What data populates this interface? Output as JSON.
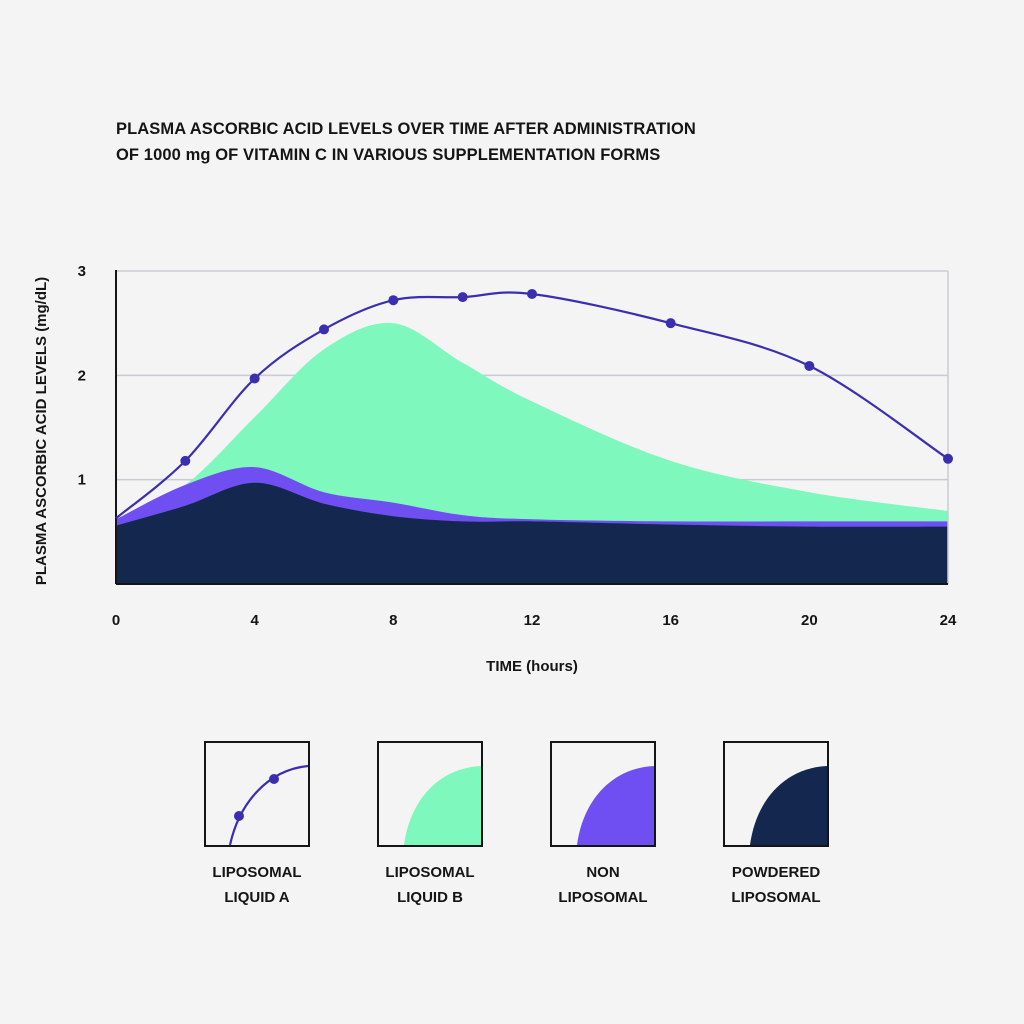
{
  "title_lines": [
    "PLASMA ASCORBIC ACID LEVELS OVER TIME AFTER ADMINISTRATION",
    "OF 1000 mg OF VITAMIN C IN VARIOUS SUPPLEMENTATION FORMS"
  ],
  "chart_data": {
    "type": "area",
    "title": "PLASMA ASCORBIC ACID LEVELS OVER TIME AFTER ADMINISTRATION OF 1000 mg OF VITAMIN C IN VARIOUS SUPPLEMENTATION FORMS",
    "xlabel": "TIME (hours)",
    "ylabel": "PLASMA ASCORBIC ACID LEVELS (mg/dL)",
    "xlim": [
      0,
      24
    ],
    "ylim": [
      0,
      3
    ],
    "x_ticks": [
      0,
      4,
      8,
      12,
      16,
      20,
      24
    ],
    "y_ticks": [
      1,
      2,
      3
    ],
    "grid": true,
    "legend_position": "bottom",
    "series": [
      {
        "name": "LIPOSOMAL LIQUID A",
        "style": "line-with-markers",
        "color": "#3b2fb0",
        "x": [
          0,
          2,
          4,
          6,
          8,
          10,
          12,
          16,
          20,
          24
        ],
        "y": [
          0.63,
          1.18,
          1.97,
          2.44,
          2.72,
          2.75,
          2.78,
          2.5,
          2.09,
          1.2
        ]
      },
      {
        "name": "LIPOSOMAL LIQUID B",
        "style": "area",
        "color": "#7ff8bd",
        "x": [
          0,
          2,
          4,
          6,
          8,
          10,
          12,
          16,
          20,
          24
        ],
        "y": [
          0.6,
          0.95,
          1.6,
          2.25,
          2.5,
          2.12,
          1.75,
          1.18,
          0.88,
          0.7
        ]
      },
      {
        "name": "NON LIPOSOMAL",
        "style": "area",
        "color": "#6f4ff2",
        "x": [
          0,
          2,
          4,
          6,
          8,
          10,
          12,
          16,
          20,
          24
        ],
        "y": [
          0.62,
          0.95,
          1.12,
          0.88,
          0.78,
          0.66,
          0.62,
          0.6,
          0.6,
          0.6
        ]
      },
      {
        "name": "POWDERED LIPOSOMAL",
        "style": "area",
        "color": "#14284f",
        "x": [
          0,
          2,
          4,
          6,
          8,
          10,
          12,
          16,
          20,
          24
        ],
        "y": [
          0.56,
          0.75,
          0.97,
          0.77,
          0.65,
          0.6,
          0.6,
          0.57,
          0.55,
          0.55
        ]
      }
    ]
  },
  "legend": [
    {
      "lines": [
        "LIPOSOMAL",
        "LIQUID A"
      ],
      "color": "#3b2fb0",
      "icon": "line-with-markers"
    },
    {
      "lines": [
        "LIPOSOMAL",
        "LIQUID B"
      ],
      "color": "#7ff8bd",
      "icon": "quarter-fill"
    },
    {
      "lines": [
        "NON",
        "LIPOSOMAL"
      ],
      "color": "#6f4ff2",
      "icon": "quarter-fill"
    },
    {
      "lines": [
        "POWDERED",
        "LIPOSOMAL"
      ],
      "color": "#14284f",
      "icon": "quarter-fill"
    }
  ]
}
